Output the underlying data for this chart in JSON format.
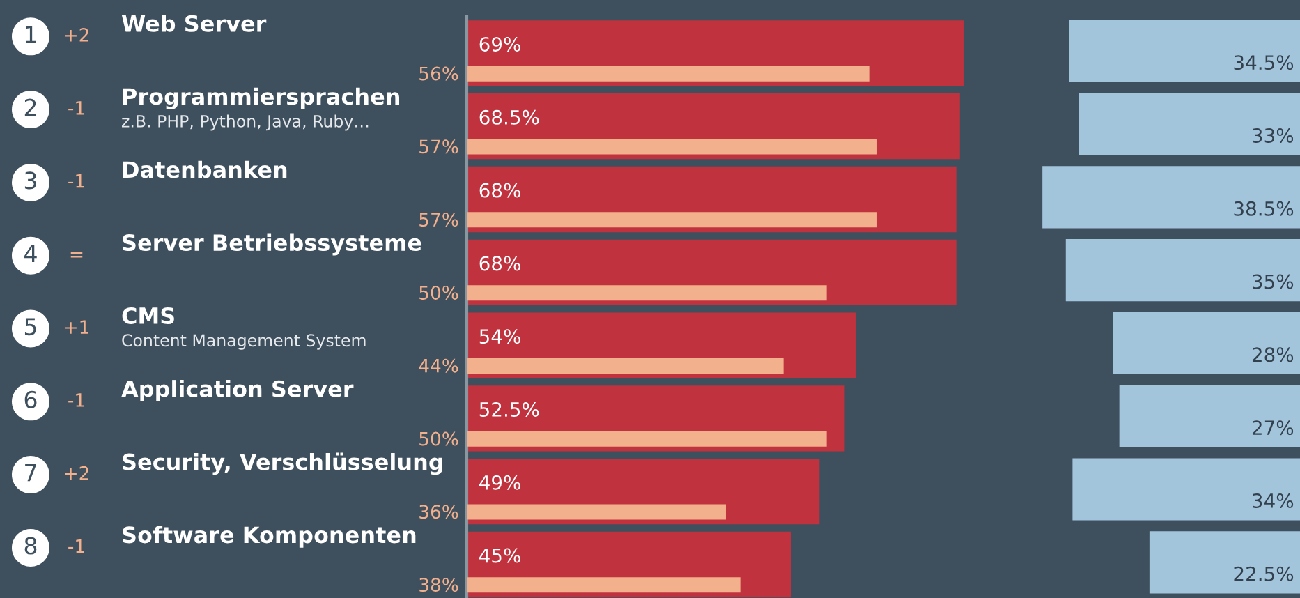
{
  "chart_data": [
    {
      "type": "bar",
      "orientation": "horizontal",
      "categories": [
        "Web Server",
        "Programmiersprachen\nz.B. PHP, Python, Java, Ruby…",
        "Datenbanken",
        "Server Betriebssysteme",
        "CMS\nContent Management System",
        "Application Server",
        "Security, Verschlüsselung",
        "Software Komponenten"
      ],
      "series": [
        {
          "color": "#c1323f",
          "values": [
            69,
            68.5,
            68,
            68,
            54,
            52.5,
            49,
            45
          ],
          "value_labels": [
            "69%",
            "68.5%",
            "68%",
            "68%",
            "54%",
            "52.5%",
            "49%",
            "45%"
          ]
        },
        {
          "color": "#f3b08d",
          "values": [
            56,
            57,
            57,
            50,
            44,
            50,
            36,
            38
          ],
          "value_labels": [
            "56%",
            "57%",
            "57%",
            "50%",
            "44%",
            "50%",
            "36%",
            "38%"
          ]
        }
      ],
      "annotations": [
        "1",
        "+2",
        "2",
        "-1",
        "3",
        "-1",
        "4",
        "=",
        "5",
        "+1",
        "6",
        "-1",
        "7",
        "+2",
        "8",
        "-1"
      ]
    },
    {
      "type": "bar",
      "orientation": "horizontal",
      "categories": [
        null,
        null,
        null,
        null,
        null,
        null,
        null,
        null
      ],
      "series": [
        {
          "color": "#a3c5dc",
          "values": [
            34.5,
            33,
            38.5,
            35,
            28,
            27,
            34,
            22.5
          ],
          "value_labels": [
            "34.5%",
            "33%",
            "38.5%",
            "35%",
            "28%",
            "27%",
            "34%",
            "22.5%"
          ]
        }
      ]
    }
  ]
}
